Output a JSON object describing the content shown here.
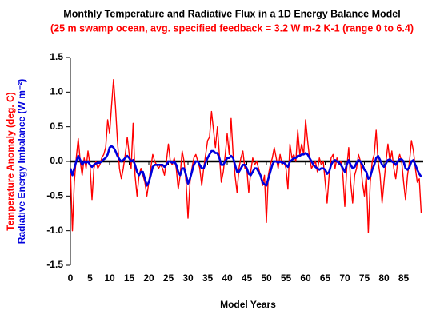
{
  "chart_data": {
    "type": "line",
    "title": "Monthly Temperature and Radiative Flux in a 1D Energy Balance Model",
    "subtitle": "(25 m swamp ocean, avg. specified feedback = 3.2 W m-2 K-1 (range 0 to 6.4)",
    "y_label": [
      "Temperature Anomaly (deg. C)",
      "Radiative Energy Imbalance (W m⁻²)"
    ],
    "x_label": "Model Years",
    "x": [
      0,
      0.5,
      1,
      1.5,
      2,
      2.5,
      3,
      3.5,
      4,
      4.5,
      5,
      5.5,
      6,
      6.5,
      7,
      7.5,
      8,
      8.5,
      9,
      9.5,
      10,
      10.5,
      11,
      11.5,
      12,
      12.5,
      13,
      13.5,
      14,
      14.5,
      15,
      15.5,
      16,
      16.5,
      17,
      17.5,
      18,
      18.5,
      19,
      19.5,
      20,
      20.5,
      21,
      21.5,
      22,
      22.5,
      23,
      23.5,
      24,
      24.5,
      25,
      25.5,
      26,
      26.5,
      27,
      27.5,
      28,
      28.5,
      29,
      29.5,
      30,
      30.5,
      31,
      31.5,
      32,
      32.5,
      33,
      33.5,
      34,
      34.5,
      35,
      35.5,
      36,
      36.5,
      37,
      37.5,
      38,
      38.5,
      39,
      39.5,
      40,
      40.5,
      41,
      41.5,
      42,
      42.5,
      43,
      43.5,
      44,
      44.5,
      45,
      45.5,
      46,
      46.5,
      47,
      47.5,
      48,
      48.5,
      49,
      49.5,
      50,
      50.5,
      51,
      51.5,
      52,
      52.5,
      53,
      53.5,
      54,
      54.5,
      55,
      55.5,
      56,
      56.5,
      57,
      57.5,
      58,
      58.5,
      59,
      59.5,
      60,
      60.5,
      61,
      61.5,
      62,
      62.5,
      63,
      63.5,
      64,
      64.5,
      65,
      65.5,
      66,
      66.5,
      67,
      67.5,
      68,
      68.5,
      69,
      69.5,
      70,
      70.5,
      71,
      71.5,
      72,
      72.5,
      73,
      73.5,
      74,
      74.5,
      75,
      75.5,
      76,
      76.5,
      77,
      77.5,
      78,
      78.5,
      79,
      79.5,
      80,
      80.5,
      81,
      81.5,
      82,
      82.5,
      83,
      83.5,
      84,
      84.5,
      85,
      85.5,
      86,
      86.5,
      87,
      87.5,
      88,
      88.5,
      89,
      89.5
    ],
    "series": [
      {
        "color": "#ff0000",
        "values": [
          -0.1,
          -1.0,
          -0.3,
          0.05,
          0.33,
          0.0,
          -0.2,
          0.05,
          -0.1,
          0.15,
          -0.05,
          -0.55,
          -0.1,
          0.0,
          -0.1,
          -0.05,
          0.05,
          0.1,
          0.2,
          0.6,
          0.4,
          0.8,
          1.18,
          0.8,
          0.3,
          -0.1,
          -0.25,
          -0.1,
          0.1,
          0.35,
          0.1,
          -0.1,
          0.55,
          -0.2,
          -0.5,
          -0.2,
          -0.1,
          -0.2,
          -0.3,
          -0.5,
          -0.3,
          -0.1,
          0.1,
          0.0,
          -0.05,
          -0.1,
          -0.05,
          -0.1,
          -0.2,
          0.0,
          0.25,
          0.0,
          -0.05,
          0.05,
          -0.1,
          -0.4,
          -0.2,
          0.15,
          0.0,
          -0.3,
          -0.82,
          -0.3,
          -0.1,
          0.05,
          0.1,
          0.0,
          -0.1,
          -0.35,
          -0.1,
          0.1,
          0.3,
          0.35,
          0.72,
          0.45,
          0.2,
          0.5,
          0.1,
          -0.3,
          -0.15,
          0.1,
          0.4,
          0.1,
          0.62,
          0.1,
          -0.2,
          -0.45,
          -0.1,
          0.05,
          0.15,
          -0.1,
          -0.1,
          -0.45,
          -0.15,
          0.05,
          -0.05,
          0.0,
          -0.1,
          -0.2,
          -0.35,
          -0.2,
          -0.88,
          -0.2,
          -0.05,
          0.05,
          0.2,
          0.05,
          -0.1,
          0.1,
          -0.05,
          0.0,
          -0.1,
          -0.4,
          0.25,
          0.05,
          0.1,
          0.0,
          0.45,
          0.1,
          0.25,
          0.1,
          0.6,
          0.3,
          0.05,
          -0.1,
          -0.05,
          0.0,
          -0.15,
          0.05,
          -0.05,
          0.0,
          -0.3,
          -0.6,
          -0.2,
          0.05,
          0.1,
          -0.1,
          0.05,
          -0.05,
          0.0,
          -0.2,
          -0.65,
          -0.1,
          0.2,
          -0.3,
          -0.6,
          -0.2,
          -0.1,
          0.1,
          0.0,
          -0.3,
          -0.5,
          -0.2,
          -1.03,
          -0.3,
          0.0,
          0.1,
          0.45,
          0.0,
          -0.2,
          -0.6,
          -0.3,
          0.0,
          0.25,
          0.0,
          0.15,
          -0.1,
          -0.25,
          0.0,
          0.1,
          0.0,
          -0.3,
          -0.55,
          -0.2,
          0.0,
          0.3,
          0.15,
          -0.1,
          -0.3,
          -0.25,
          -0.75
        ]
      },
      {
        "color": "#0000dd",
        "values": [
          -0.1,
          -0.2,
          -0.1,
          0.0,
          0.08,
          0.02,
          -0.05,
          0.0,
          -0.02,
          0.0,
          -0.05,
          -0.08,
          -0.05,
          -0.03,
          -0.02,
          -0.02,
          0.0,
          0.03,
          0.05,
          0.1,
          0.2,
          0.22,
          0.2,
          0.15,
          0.08,
          0.03,
          0.0,
          0.02,
          0.05,
          0.08,
          0.05,
          0.0,
          0.02,
          -0.05,
          -0.15,
          -0.2,
          -0.15,
          -0.15,
          -0.25,
          -0.35,
          -0.3,
          -0.2,
          -0.08,
          -0.05,
          -0.05,
          -0.05,
          -0.05,
          -0.05,
          -0.08,
          -0.05,
          0.0,
          0.0,
          -0.02,
          0.0,
          -0.05,
          -0.15,
          -0.2,
          -0.1,
          -0.1,
          -0.2,
          -0.32,
          -0.25,
          -0.15,
          -0.05,
          0.0,
          0.0,
          -0.05,
          -0.1,
          -0.1,
          -0.02,
          0.05,
          0.1,
          0.15,
          0.15,
          0.12,
          0.12,
          0.05,
          -0.05,
          -0.05,
          0.0,
          0.05,
          0.05,
          0.08,
          0.05,
          -0.05,
          -0.15,
          -0.15,
          -0.1,
          -0.05,
          -0.05,
          -0.1,
          -0.18,
          -0.2,
          -0.15,
          -0.1,
          -0.1,
          -0.15,
          -0.2,
          -0.3,
          -0.33,
          -0.35,
          -0.25,
          -0.15,
          -0.05,
          0.0,
          0.0,
          -0.02,
          0.0,
          -0.02,
          -0.02,
          -0.05,
          -0.08,
          0.0,
          0.02,
          0.05,
          0.05,
          0.08,
          0.08,
          0.1,
          0.1,
          0.12,
          0.1,
          0.05,
          0.0,
          -0.05,
          -0.08,
          -0.1,
          -0.12,
          -0.1,
          -0.1,
          -0.12,
          -0.18,
          -0.15,
          -0.05,
          0.0,
          0.02,
          0.0,
          -0.02,
          -0.05,
          -0.1,
          -0.15,
          -0.05,
          0.02,
          -0.05,
          -0.1,
          -0.08,
          -0.02,
          0.02,
          0.0,
          -0.05,
          -0.12,
          -0.15,
          -0.25,
          -0.22,
          -0.12,
          -0.05,
          0.05,
          0.08,
          0.02,
          -0.05,
          -0.08,
          -0.03,
          0.02,
          0.03,
          0.0,
          -0.02,
          -0.05,
          0.0,
          0.03,
          0.03,
          0.0,
          -0.1,
          -0.12,
          -0.08,
          0.0,
          0.02,
          -0.05,
          -0.12,
          -0.18,
          -0.22
        ]
      }
    ],
    "xlim": [
      0,
      90
    ],
    "xticks": [
      0,
      5,
      10,
      15,
      20,
      25,
      30,
      35,
      40,
      45,
      50,
      55,
      60,
      65,
      70,
      75,
      80,
      85
    ],
    "ylim": [
      -1.5,
      1.5
    ],
    "yticks": [
      1.5,
      {
        "value": 1,
        "label": "1.0"
      },
      0.5,
      {
        "value": 0,
        "label": "0.0"
      },
      -0.5,
      {
        "value": -1,
        "label": "-1.0"
      },
      -1.5
    ],
    "grid": false
  }
}
